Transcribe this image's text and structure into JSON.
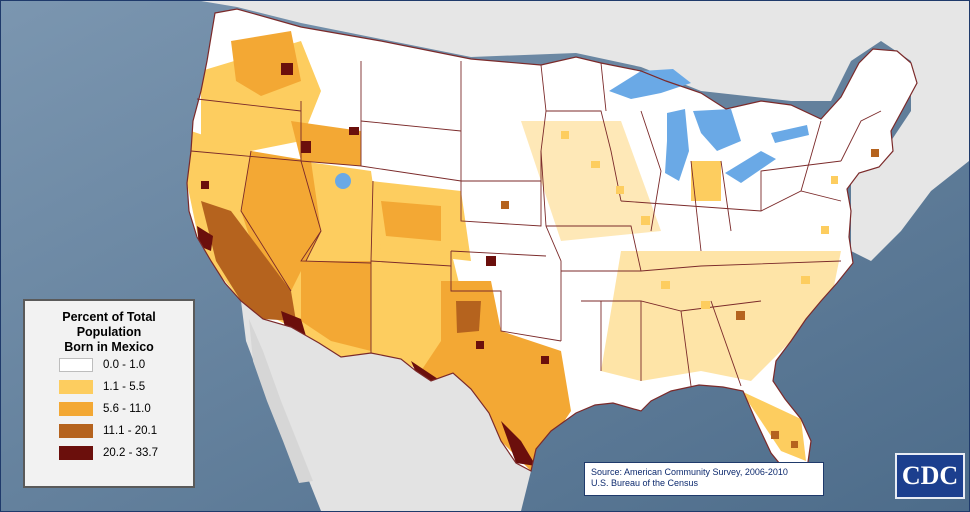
{
  "legend": {
    "title_line1": "Percent of Total Population",
    "title_line2": "Born in Mexico",
    "classes": [
      {
        "label": "0.0 - 1.0",
        "color": "#ffffff"
      },
      {
        "label": "1.1 - 5.5",
        "color": "#fdcd5f"
      },
      {
        "label": "5.6 - 11.0",
        "color": "#f3a834"
      },
      {
        "label": "11.1 - 20.1",
        "color": "#b5631e"
      },
      {
        "label": "20.2 - 33.7",
        "color": "#6b0f0c"
      }
    ]
  },
  "source": {
    "line1": "Source: American Community Survey, 2006-2010",
    "line2": "U.S. Bureau of the Census"
  },
  "logo": {
    "text": "CDC"
  },
  "colors": {
    "ocean": "#5f7e99",
    "land_outside": "#dcdcdc",
    "lakes": "#6aa9e6",
    "state_borders": "#7b2a2a"
  }
}
